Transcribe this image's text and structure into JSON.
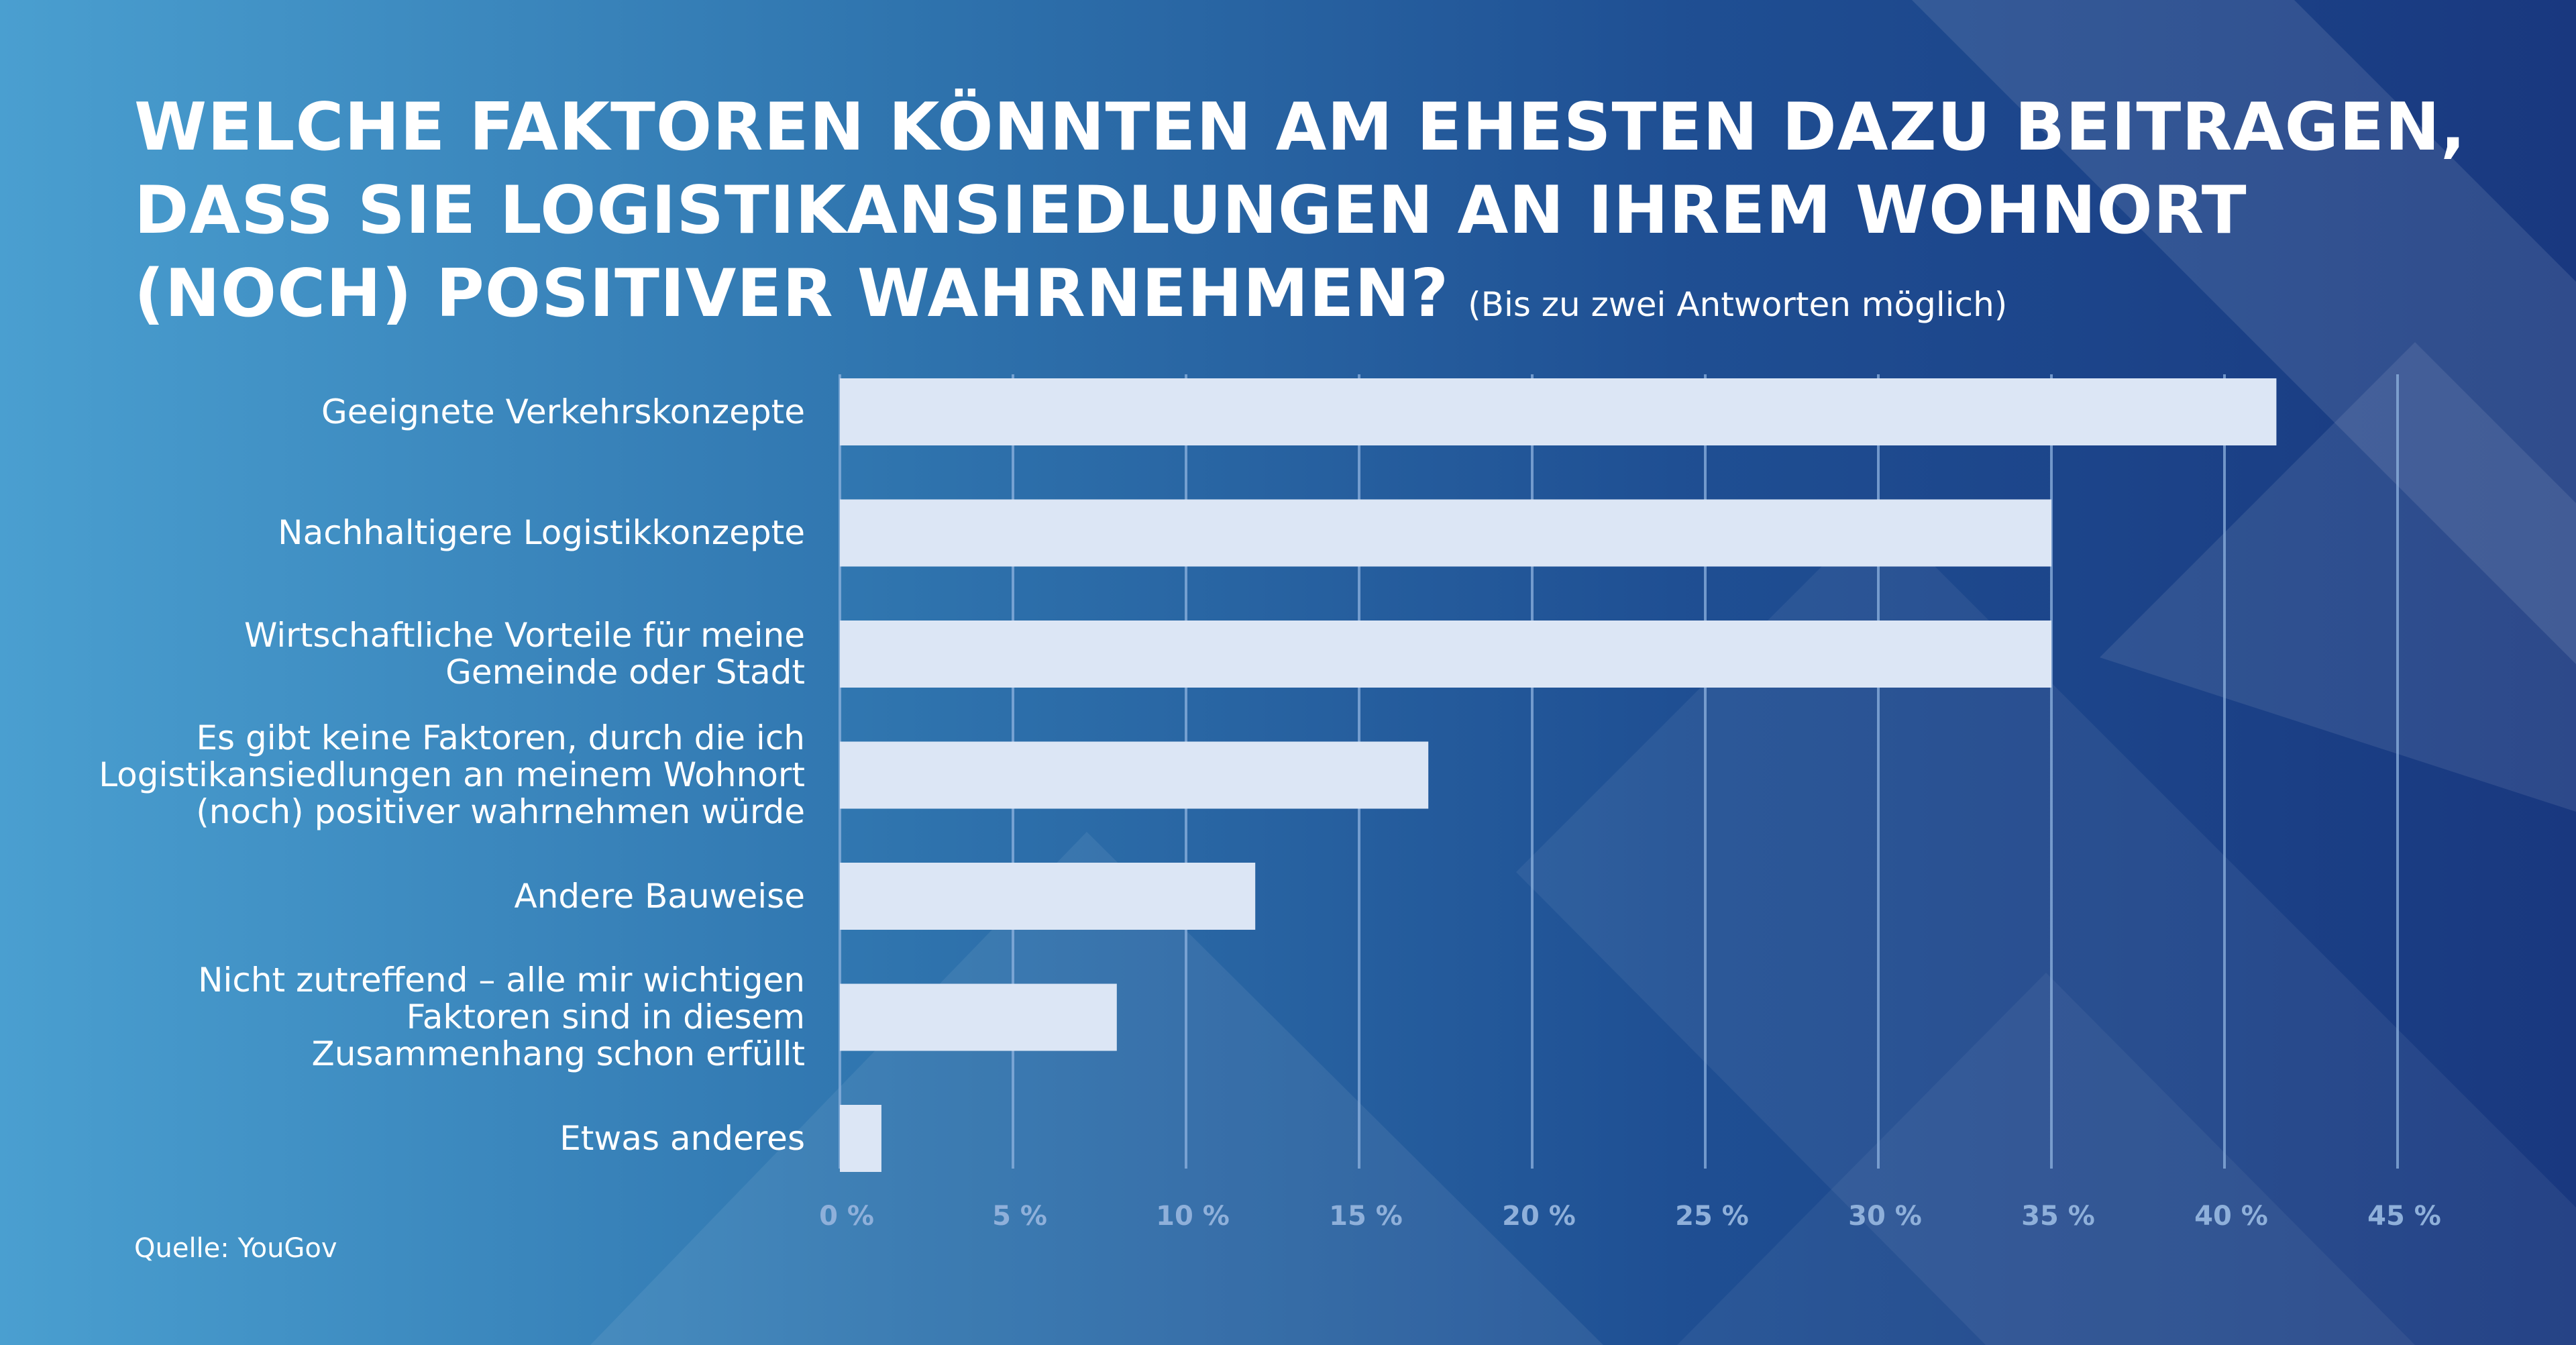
{
  "title_lines": [
    "WELCHE FAKTOREN KÖNNTEN AM EHESTEN DAZU BEITRAGEN,",
    "DASS SIE LOGISTIKANSIEDLUNGEN AN IHREM WOHNORT",
    "(NOCH) POSITIVER WAHRNEHMEN?"
  ],
  "subtitle": "(Bis zu zwei Antworten möglich)",
  "source": "Quelle: YouGov",
  "colors": {
    "bar": "#dce6f5",
    "grid": "#8fb3df",
    "tick_label": "#8fb0da",
    "text": "#ffffff"
  },
  "chart_data": {
    "type": "bar",
    "orientation": "horizontal",
    "categories": [
      [
        "Geeignete Verkehrskonzepte"
      ],
      [
        "Nachhaltigere Logistikkonzepte"
      ],
      [
        "Wirtschaftliche Vorteile für meine",
        "Gemeinde oder Stadt"
      ],
      [
        "Es gibt keine Faktoren, durch die ich",
        "Logistikansiedlungen an meinem Wohnort",
        "(noch) positiver wahrnehmen würde"
      ],
      [
        "Andere Bauweise"
      ],
      [
        "Nicht zutreffend – alle mir wichtigen",
        "Faktoren sind in diesem",
        "Zusammenhang schon erfüllt"
      ],
      [
        "Etwas anderes"
      ]
    ],
    "values": [
      41.5,
      35,
      35,
      17,
      12,
      8,
      1.2
    ],
    "xlim": [
      0,
      45
    ],
    "ticks": [
      0,
      5,
      10,
      15,
      20,
      25,
      30,
      35,
      40,
      45
    ],
    "tick_labels": [
      "0 %",
      "5 %",
      "10 %",
      "15 %",
      "20 %",
      "25 %",
      "30 %",
      "35 %",
      "40 %",
      "45 %"
    ],
    "grid": true
  }
}
